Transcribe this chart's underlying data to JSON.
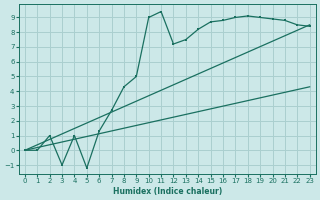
{
  "xlabel": "Humidex (Indice chaleur)",
  "bg_color": "#cce8e8",
  "grid_color": "#aacfcf",
  "line_color": "#1a7060",
  "xlim": [
    -0.5,
    23.5
  ],
  "ylim": [
    -1.6,
    9.9
  ],
  "xticks": [
    0,
    1,
    2,
    3,
    4,
    5,
    6,
    7,
    8,
    9,
    10,
    11,
    12,
    13,
    14,
    15,
    16,
    17,
    18,
    19,
    20,
    21,
    22,
    23
  ],
  "yticks": [
    -1,
    0,
    1,
    2,
    3,
    4,
    5,
    6,
    7,
    8,
    9
  ],
  "line1_x": [
    0,
    1,
    2,
    3,
    4,
    5,
    6,
    7,
    8,
    9,
    10,
    11,
    12,
    13,
    14,
    15,
    16,
    17,
    18,
    19,
    20,
    21,
    22,
    23
  ],
  "line1_y": [
    0,
    0,
    1,
    -1,
    1,
    -1.2,
    1.3,
    2.7,
    4.3,
    5.0,
    9.0,
    9.4,
    7.2,
    7.5,
    8.2,
    8.7,
    8.8,
    9.0,
    9.1,
    9.0,
    8.9,
    8.8,
    8.5,
    8.4
  ],
  "line2_x": [
    0,
    23
  ],
  "line2_y": [
    0.0,
    8.5
  ],
  "line3_x": [
    0,
    23
  ],
  "line3_y": [
    0.0,
    4.3
  ]
}
